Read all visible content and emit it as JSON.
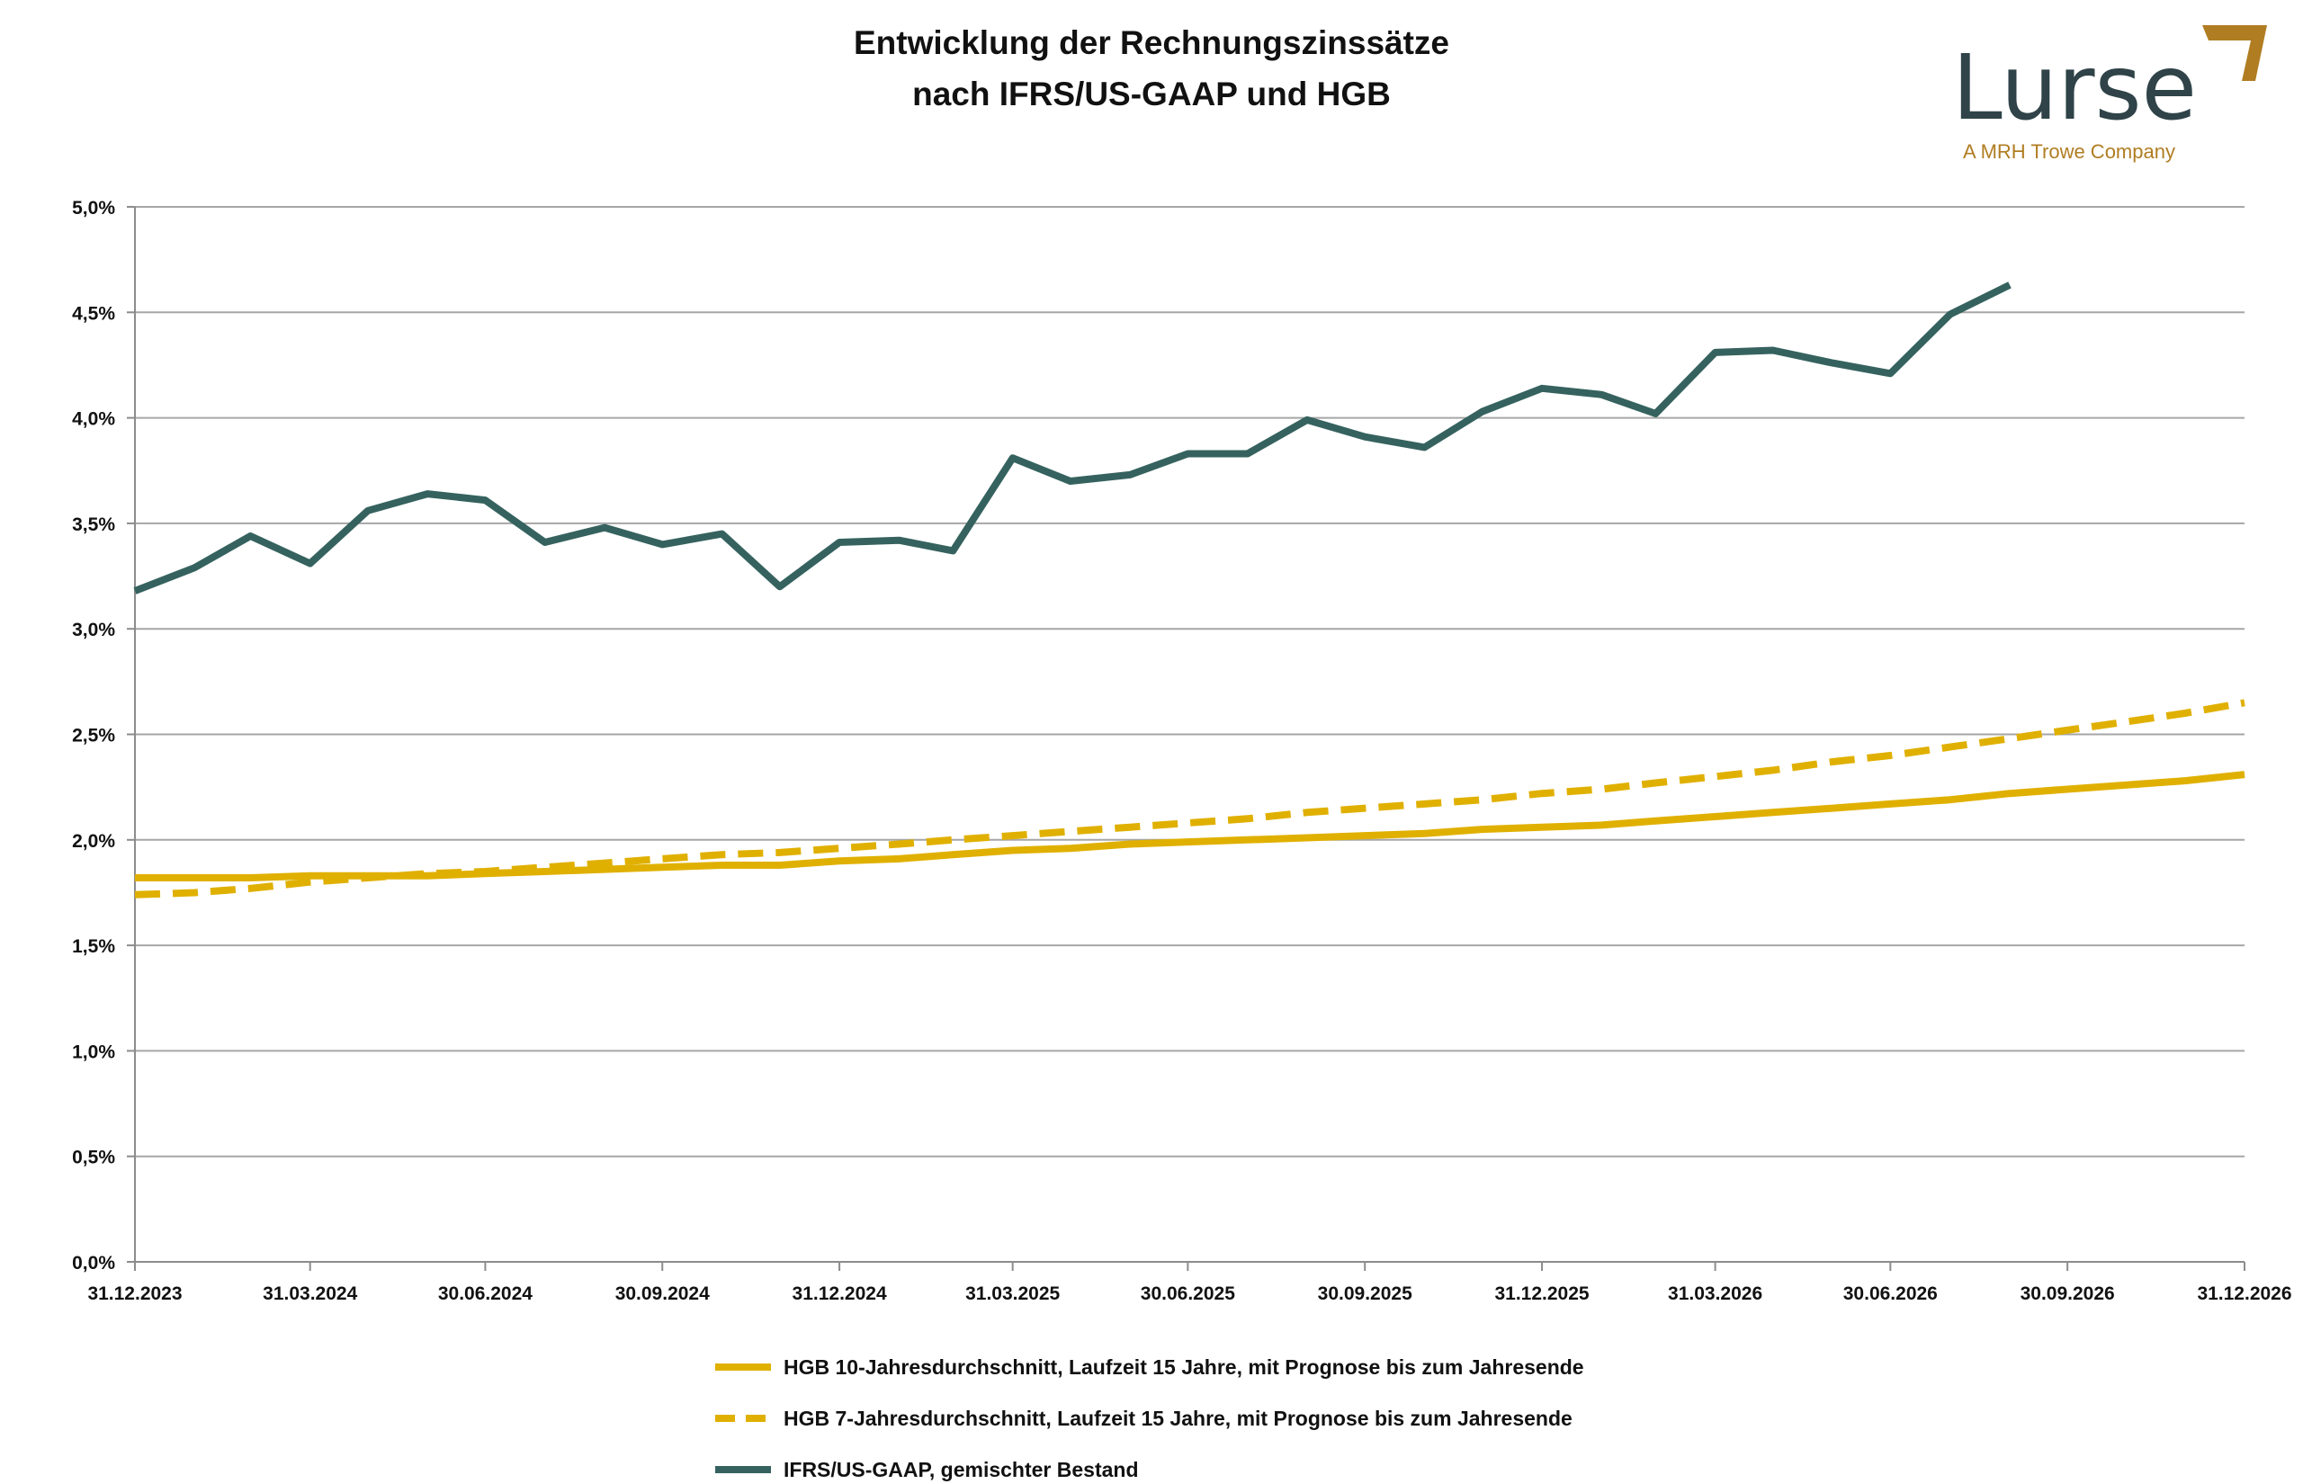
{
  "logo": {
    "word": "Lurse",
    "tagline": "A MRH Trowe Company"
  },
  "colors": {
    "gold": "#e0b000",
    "teal": "#35625f",
    "grid": "#a6a6a6",
    "axis": "#8c8c8c"
  },
  "chart_data": {
    "type": "line",
    "title": [
      "Entwicklung der Rechnungszinssätze",
      "nach IFRS/US-GAAP und HGB"
    ],
    "xlabel": "",
    "ylabel": "",
    "ylim": [
      0,
      5.0
    ],
    "y_ticks": [
      {
        "v": 0.0,
        "label": "0,0%"
      },
      {
        "v": 0.5,
        "label": "0,5%"
      },
      {
        "v": 1.0,
        "label": "1,0%"
      },
      {
        "v": 1.5,
        "label": "1,5%"
      },
      {
        "v": 2.0,
        "label": "2,0%"
      },
      {
        "v": 2.5,
        "label": "2,5%"
      },
      {
        "v": 3.0,
        "label": "3,0%"
      },
      {
        "v": 3.5,
        "label": "3,5%"
      },
      {
        "v": 4.0,
        "label": "4,0%"
      },
      {
        "v": 4.5,
        "label": "4,5%"
      },
      {
        "v": 5.0,
        "label": "5,0%"
      }
    ],
    "x_range": [
      "2023-12-31",
      "2026-12-31"
    ],
    "x_ticks": [
      {
        "d": "2023-12-31",
        "label": "31.12.2023"
      },
      {
        "d": "2024-03-31",
        "label": "31.03.2024"
      },
      {
        "d": "2024-06-30",
        "label": "30.06.2024"
      },
      {
        "d": "2024-09-30",
        "label": "30.09.2024"
      },
      {
        "d": "2024-12-31",
        "label": "31.12.2024"
      },
      {
        "d": "2025-03-31",
        "label": "31.03.2025"
      },
      {
        "d": "2025-06-30",
        "label": "30.06.2025"
      },
      {
        "d": "2025-09-30",
        "label": "30.09.2025"
      },
      {
        "d": "2025-12-31",
        "label": "31.12.2025"
      },
      {
        "d": "2026-03-31",
        "label": "31.03.2026"
      },
      {
        "d": "2026-06-30",
        "label": "30.06.2026"
      },
      {
        "d": "2026-09-30",
        "label": "30.09.2026"
      },
      {
        "d": "2026-12-31",
        "label": "31.12.2026"
      }
    ],
    "series": [
      {
        "name": "HGB 10-Jahresdurchschnitt, Laufzeit 15 Jahre, mit Prognose bis zum Jahresende",
        "color": "#e0b000",
        "style": "solid",
        "x": [
          "2023-12-31",
          "2024-01-31",
          "2024-02-29",
          "2024-03-31",
          "2024-04-30",
          "2024-05-31",
          "2024-06-30",
          "2024-07-31",
          "2024-08-31",
          "2024-09-30",
          "2024-10-31",
          "2024-11-30",
          "2024-12-31",
          "2025-01-31",
          "2025-02-28",
          "2025-03-31",
          "2025-04-30",
          "2025-05-31",
          "2025-06-30",
          "2025-07-31",
          "2025-08-31",
          "2025-09-30",
          "2025-10-31",
          "2025-11-30",
          "2025-12-31",
          "2026-01-31",
          "2026-02-28",
          "2026-03-31",
          "2026-04-30",
          "2026-05-31",
          "2026-06-30",
          "2026-07-31",
          "2026-08-31",
          "2026-09-30",
          "2026-10-31",
          "2026-11-30",
          "2026-12-31"
        ],
        "y": [
          1.82,
          1.82,
          1.82,
          1.83,
          1.83,
          1.83,
          1.84,
          1.85,
          1.86,
          1.87,
          1.88,
          1.88,
          1.9,
          1.91,
          1.93,
          1.95,
          1.96,
          1.98,
          1.99,
          2.0,
          2.01,
          2.02,
          2.03,
          2.05,
          2.06,
          2.07,
          2.09,
          2.11,
          2.13,
          2.15,
          2.17,
          2.19,
          2.22,
          2.24,
          2.26,
          2.28,
          2.31
        ]
      },
      {
        "name": "HGB 7-Jahresdurchschnitt, Laufzeit 15 Jahre, mit Prognose bis zum Jahresende",
        "color": "#e0b000",
        "style": "dashed",
        "x": [
          "2023-12-31",
          "2024-01-31",
          "2024-02-29",
          "2024-03-31",
          "2024-04-30",
          "2024-05-31",
          "2024-06-30",
          "2024-07-31",
          "2024-08-31",
          "2024-09-30",
          "2024-10-31",
          "2024-11-30",
          "2024-12-31",
          "2025-01-31",
          "2025-02-28",
          "2025-03-31",
          "2025-04-30",
          "2025-05-31",
          "2025-06-30",
          "2025-07-31",
          "2025-08-31",
          "2025-09-30",
          "2025-10-31",
          "2025-11-30",
          "2025-12-31",
          "2026-01-31",
          "2026-02-28",
          "2026-03-31",
          "2026-04-30",
          "2026-05-31",
          "2026-06-30",
          "2026-07-31",
          "2026-08-31",
          "2026-09-30",
          "2026-10-31",
          "2026-11-30",
          "2026-12-31"
        ],
        "y": [
          1.74,
          1.75,
          1.77,
          1.8,
          1.82,
          1.84,
          1.85,
          1.87,
          1.89,
          1.91,
          1.93,
          1.94,
          1.96,
          1.98,
          2.0,
          2.02,
          2.04,
          2.06,
          2.08,
          2.1,
          2.13,
          2.15,
          2.17,
          2.19,
          2.22,
          2.24,
          2.27,
          2.3,
          2.33,
          2.37,
          2.4,
          2.44,
          2.48,
          2.52,
          2.56,
          2.6,
          2.65
        ]
      },
      {
        "name": "IFRS/US-GAAP, gemischter Bestand",
        "color": "#35625f",
        "style": "solid",
        "x": [
          "2023-12-31",
          "2024-01-31",
          "2024-02-29",
          "2024-03-31",
          "2024-04-30",
          "2024-05-31",
          "2024-06-30",
          "2024-07-31",
          "2024-08-31",
          "2024-09-30",
          "2024-10-31",
          "2024-11-30",
          "2024-12-31",
          "2025-01-31",
          "2025-02-28",
          "2025-03-31",
          "2025-04-30",
          "2025-05-31",
          "2025-06-30",
          "2025-07-31",
          "2025-08-31",
          "2025-09-30",
          "2025-10-31",
          "2025-11-30",
          "2025-12-31",
          "2026-01-31",
          "2026-02-28",
          "2026-03-31",
          "2026-04-30",
          "2026-05-31",
          "2026-06-30",
          "2026-07-31",
          "2026-08-31"
        ],
        "y": [
          3.18,
          3.29,
          3.44,
          3.31,
          3.56,
          3.64,
          3.61,
          3.41,
          3.48,
          3.4,
          3.45,
          3.2,
          3.41,
          3.42,
          3.37,
          3.81,
          3.7,
          3.73,
          3.83,
          3.83,
          3.99,
          3.91,
          3.86,
          4.03,
          4.14,
          4.11,
          4.02,
          4.31,
          4.32,
          4.26,
          4.21,
          4.49,
          4.63
        ]
      }
    ]
  }
}
